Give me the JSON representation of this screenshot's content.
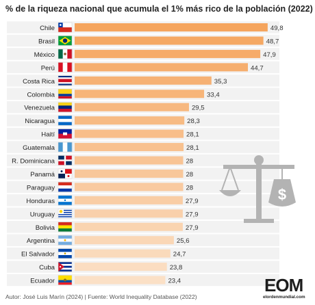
{
  "chart_data": {
    "type": "bar",
    "orientation": "horizontal",
    "title": "% de la riqueza nacional que acumula el 1% más rico de la población (2022)",
    "categories": [
      "Chile",
      "Brasil",
      "México",
      "Perú",
      "Costa Rica",
      "Colombia",
      "Venezuela",
      "Nicaragua",
      "Haití",
      "Guatemala",
      "R. Dominicana",
      "Panamá",
      "Paraguay",
      "Honduras",
      "Uruguay",
      "Bolivia",
      "Argentina",
      "El Salvador",
      "Cuba",
      "Ecuador"
    ],
    "values": [
      49.8,
      48.7,
      47.9,
      44.7,
      35.3,
      33.4,
      29.5,
      28.3,
      28.1,
      28.1,
      28,
      28,
      28,
      27.9,
      27.9,
      27.9,
      25.6,
      24.7,
      23.8,
      23.4
    ],
    "value_labels": [
      "49,8",
      "48,7",
      "47,9",
      "44,7",
      "35,3",
      "33,4",
      "29,5",
      "28,3",
      "28,1",
      "28,1",
      "28",
      "28",
      "28",
      "27,9",
      "27,9",
      "27,9",
      "25,6",
      "24,7",
      "23,8",
      "23,4"
    ],
    "flags": [
      "chile",
      "brazil",
      "mexico",
      "peru",
      "costa-rica",
      "colombia",
      "venezuela",
      "nicaragua",
      "haiti",
      "guatemala",
      "dominican-republic",
      "panama",
      "paraguay",
      "honduras",
      "uruguay",
      "bolivia",
      "argentina",
      "el-salvador",
      "cuba",
      "ecuador"
    ],
    "xlim": [
      0,
      50
    ],
    "grid": false,
    "colors": {
      "bar_top": "#f5a55e",
      "bar_bottom": "#fbe0c6",
      "row_band": "#f2f2f2"
    }
  },
  "footer": "Autor: José Luis Marín  (2024) | Fuente: World Inequality Database (2022)",
  "logo": {
    "main": "EOM",
    "sub": "elordenmundial.com"
  }
}
